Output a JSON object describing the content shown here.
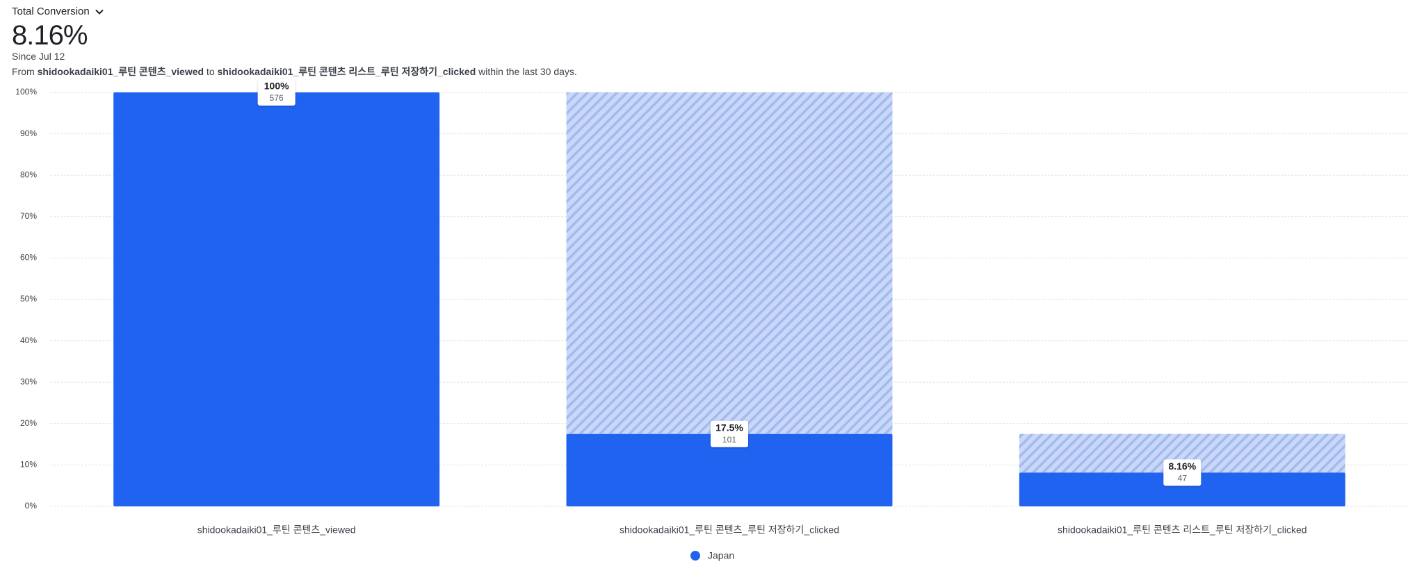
{
  "header": {
    "metric": "Total Conversion",
    "conversion": "8.16%",
    "since": "Since Jul 12",
    "description": [
      "From ",
      "shidookadaiki01_루틴 콘텐츠_viewed",
      " to ",
      "shidookadaiki01_루틴 콘텐츠 리스트_루틴 저장하기_clicked",
      " within the last 30 days."
    ]
  },
  "chart_data": {
    "type": "funnel-bar",
    "categories": [
      "shidookadaiki01_루틴 콘텐츠_viewed",
      "shidookadaiki01_루틴 콘텐츠_루틴 저장하기_clicked",
      "shidookadaiki01_루틴 콘텐츠 리스트_루틴 저장하기_clicked"
    ],
    "series": [
      {
        "name": "Japan",
        "color": "#2063f0",
        "values": [
          100,
          17.5,
          8.16
        ],
        "value_labels": [
          "100%",
          "17.5%",
          "8.16%"
        ],
        "counts": [
          576,
          101,
          47
        ]
      }
    ],
    "ylim": [
      0,
      100
    ],
    "yticks": [
      {
        "value": 0,
        "label": "0%"
      },
      {
        "value": 10,
        "label": "10%"
      },
      {
        "value": 20,
        "label": "20%"
      },
      {
        "value": 30,
        "label": "30%"
      },
      {
        "value": 40,
        "label": "40%"
      },
      {
        "value": 50,
        "label": "50%"
      },
      {
        "value": 60,
        "label": "60%"
      },
      {
        "value": 70,
        "label": "70%"
      },
      {
        "value": 80,
        "label": "80%"
      },
      {
        "value": 90,
        "label": "90%"
      },
      {
        "value": 100,
        "label": "100%"
      }
    ],
    "grid": true,
    "legend": "bottom"
  }
}
